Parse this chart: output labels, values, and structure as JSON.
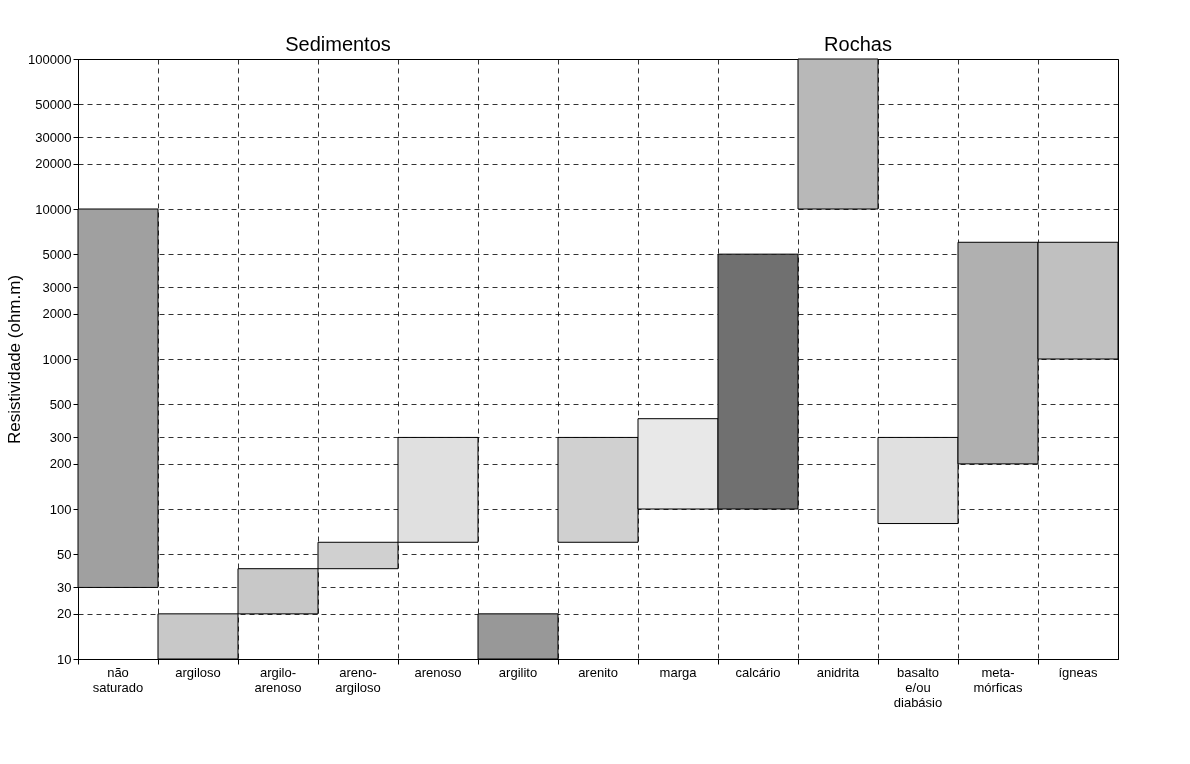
{
  "chart_data": {
    "type": "bar",
    "ylabel": "Resistividade (ohm.m)",
    "annotations": [
      "Sedimentos",
      "Rochas"
    ],
    "categories": [
      "não saturado",
      "argiloso",
      "argilo-arenoso",
      "areno-argiloso",
      "arenoso",
      "argilito",
      "arenito",
      "marga",
      "calcário",
      "anidrita",
      "basalto e/ou diabásio",
      "meta-mórficas",
      "ígneas"
    ],
    "base": [
      30,
      10,
      20,
      40,
      60,
      10,
      60,
      100,
      100,
      10000,
      80,
      200,
      1000
    ],
    "values": [
      9970,
      10,
      20,
      20,
      240,
      10,
      240,
      300,
      4900,
      90000,
      220,
      5800,
      5000
    ],
    "colors": [
      "#a0a0a0",
      "#c8c8c8",
      "#c8c8c8",
      "#d0d0d0",
      "#e0e0e0",
      "#989898",
      "#d0d0d0",
      "#e8e8e8",
      "#707070",
      "#b8b8b8",
      "#e0e0e0",
      "#b0b0b0",
      "#c0c0c0"
    ],
    "log": "y",
    "ylim": [
      10,
      100000
    ],
    "yticks": [
      10,
      20,
      30,
      50,
      100,
      200,
      300,
      500,
      1000,
      2000,
      3000,
      5000,
      10000,
      20000,
      30000,
      50000,
      100000
    ],
    "grid": true
  }
}
